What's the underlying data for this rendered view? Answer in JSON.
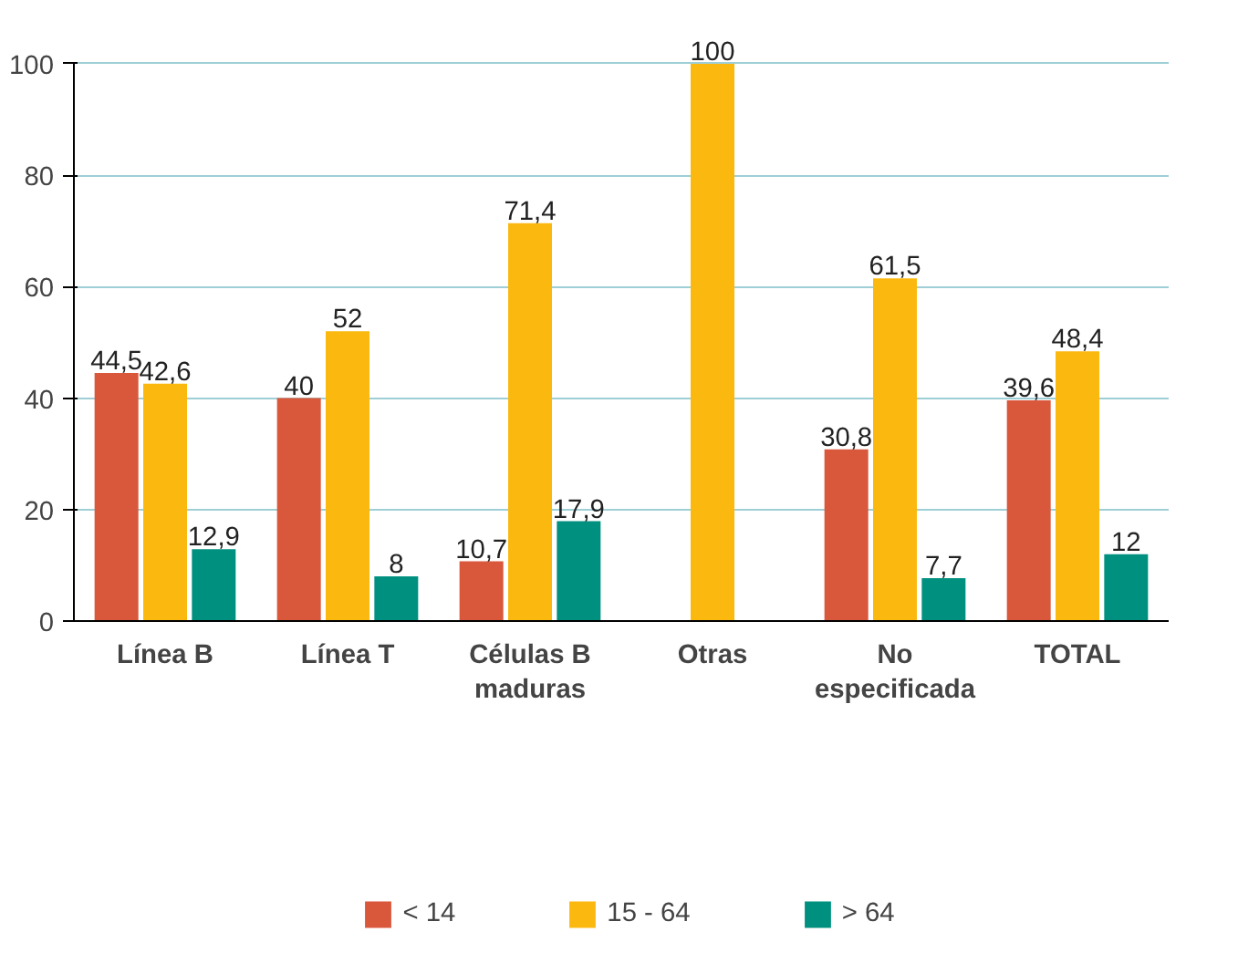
{
  "chart_data": {
    "type": "bar",
    "categories": [
      "Línea B",
      "Línea T",
      "Células B\nmaduras",
      "Otras",
      "No\nespecificada",
      "TOTAL"
    ],
    "series": [
      {
        "name": "< 14",
        "color": "#d9573a",
        "values": [
          44.5,
          40,
          10.7,
          null,
          30.8,
          39.6
        ],
        "value_labels": [
          "44,5",
          "40",
          "10,7",
          null,
          "30,8",
          "39,6"
        ]
      },
      {
        "name": "15 - 64",
        "color": "#fbb80f",
        "values": [
          42.6,
          52,
          71.4,
          100,
          61.5,
          48.4
        ],
        "value_labels": [
          "42,6",
          "52",
          "71,4",
          "100",
          "61,5",
          "48,4"
        ]
      },
      {
        "name": "> 64",
        "color": "#00907f",
        "values": [
          12.9,
          8,
          17.9,
          null,
          7.7,
          12
        ],
        "value_labels": [
          "12,9",
          "8",
          "17,9",
          null,
          "7,7",
          "12"
        ]
      }
    ],
    "ylim": [
      0,
      100
    ],
    "yticks": [
      0,
      20,
      40,
      60,
      80,
      100
    ],
    "grid": "y",
    "legend": "bottom"
  }
}
